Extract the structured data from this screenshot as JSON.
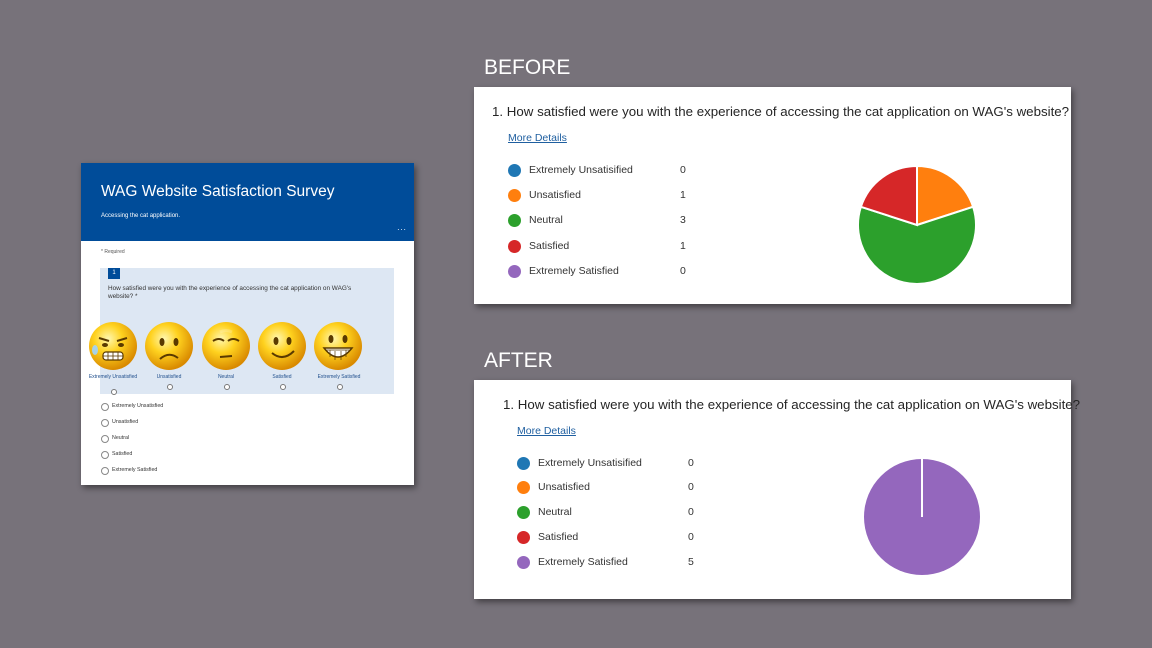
{
  "form": {
    "title": "WAG Website Satisfaction Survey",
    "subtitle": "Accessing the cat application.",
    "more_icon": "ellipsis-icon",
    "required_note": "* Required",
    "question_number": "1",
    "question_text": "How satisfied were you with the experience of accessing the cat application on WAG's website? *",
    "emoji_choices": [
      {
        "label": "Extremely Unsatisfied",
        "icon": "extremely-unsatisfied-emoji-icon"
      },
      {
        "label": "Unsatisfied",
        "icon": "unsatisfied-emoji-icon"
      },
      {
        "label": "Neutral",
        "icon": "neutral-emoji-icon"
      },
      {
        "label": "Satisfied",
        "icon": "satisfied-emoji-icon"
      },
      {
        "label": "Extremely Satisfied",
        "icon": "extremely-satisfied-emoji-icon"
      }
    ],
    "options": [
      "Extremely Unsatisfied",
      "Unsatisfied",
      "Neutral",
      "Satisfied",
      "Extremely Satisfied"
    ]
  },
  "before": {
    "heading": "BEFORE",
    "question": "1.  How satisfied were you with the experience of accessing the cat application on WAG's website?",
    "more_details": "More Details",
    "legend": [
      {
        "label": "Extremely Unsatisified",
        "count": "0",
        "color": "#1f77b4"
      },
      {
        "label": "Unsatisfied",
        "count": "1",
        "color": "#ff7f0e"
      },
      {
        "label": "Neutral",
        "count": "3",
        "color": "#2ca02c"
      },
      {
        "label": "Satisfied",
        "count": "1",
        "color": "#d62728"
      },
      {
        "label": "Extremely Satisfied",
        "count": "0",
        "color": "#9467bd"
      }
    ]
  },
  "after": {
    "heading": "AFTER",
    "question": "1.  How satisfied were you with the experience of accessing the cat application on WAG's website?",
    "more_details": "More Details",
    "legend": [
      {
        "label": "Extremely Unsatisified",
        "count": "0",
        "color": "#1f77b4"
      },
      {
        "label": "Unsatisfied",
        "count": "0",
        "color": "#ff7f0e"
      },
      {
        "label": "Neutral",
        "count": "0",
        "color": "#2ca02c"
      },
      {
        "label": "Satisfied",
        "count": "0",
        "color": "#d62728"
      },
      {
        "label": "Extremely Satisfied",
        "count": "5",
        "color": "#9467bd"
      }
    ]
  },
  "chart_data": [
    {
      "type": "pie",
      "categories": [
        "Extremely Unsatisified",
        "Unsatisfied",
        "Neutral",
        "Satisfied",
        "Extremely Satisfied"
      ],
      "values": [
        0,
        1,
        3,
        1,
        0
      ],
      "colors": [
        "#1f77b4",
        "#ff7f0e",
        "#2ca02c",
        "#d62728",
        "#9467bd"
      ]
    },
    {
      "type": "pie",
      "categories": [
        "Extremely Unsatisified",
        "Unsatisfied",
        "Neutral",
        "Satisfied",
        "Extremely Satisfied"
      ],
      "values": [
        0,
        0,
        0,
        0,
        5
      ],
      "colors": [
        "#1f77b4",
        "#ff7f0e",
        "#2ca02c",
        "#d62728",
        "#9467bd"
      ]
    }
  ]
}
